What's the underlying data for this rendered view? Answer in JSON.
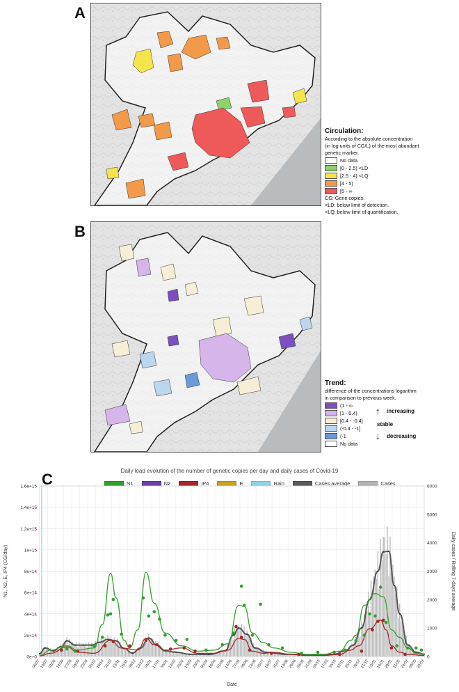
{
  "panels": {
    "a": "A",
    "b": "B",
    "c": "C"
  },
  "legend_a": {
    "title": "Circulation:",
    "desc1": "According to the absolute concentration",
    "desc2": "(in log units of CG/L) of the most abundant",
    "desc3": "genetic marker.",
    "items": [
      {
        "label": "No data",
        "color": "#ffffff"
      },
      {
        "label": "[0 - 2.5) <LD",
        "color": "#8fd16a"
      },
      {
        "label": "[2.5 - 4) <LQ",
        "color": "#f5e54a"
      },
      {
        "label": "[4 - 5)",
        "color": "#f29a4a"
      },
      {
        "label": "[5 - ∞",
        "color": "#ee5a5a"
      }
    ],
    "note1": "CG: Gene copies.",
    "note2": "<LD: below limit of detection.",
    "note3": "<LQ: below limit of quantification."
  },
  "legend_b": {
    "title": "Trend:",
    "desc1": "difference of the concentrations logarithm",
    "desc2": "in comparison to previous week.",
    "items": [
      {
        "label": "(1 - ∞",
        "color": "#7b4fbf"
      },
      {
        "label": "[1 - 0.4)",
        "color": "#d5b5ea"
      },
      {
        "label": "[0.4 - -0.4]",
        "color": "#f6eed6"
      },
      {
        "label": "(-0.4 - -1]",
        "color": "#bcd6ee"
      },
      {
        "label": "(-1",
        "color": "#6a9bd8"
      },
      {
        "label": "No data",
        "color": "#ffffff"
      }
    ],
    "increasing": "increasing",
    "stable": "stable",
    "decreasing": "decreasing",
    "arrow_up": "↑",
    "arrow_down": "↓"
  },
  "chart_data": {
    "type": "line",
    "title": "Daily load evolution of the number of genetic copies per day and daily cases of Covid-19",
    "xlabel": "Date",
    "ylabel": "N1, N2, E, IP4 (CG/day)",
    "y2label": "Daily cases / Rolling 7-days average",
    "ylim": [
      0,
      1600000000000000.0
    ],
    "y2lim": [
      0,
      6000
    ],
    "yticks": [
      "0e+0",
      "2e+14",
      "4e+14",
      "6e+14",
      "8e+14",
      "1e+15",
      "1.2e+15",
      "1.4e+15",
      "1.6e+15"
    ],
    "y2ticks": [
      "0",
      "1000",
      "2000",
      "3000",
      "4000",
      "5000",
      "6000"
    ],
    "xticks": [
      "06/07",
      "19/07",
      "01/08",
      "14/08",
      "27/08",
      "09/09",
      "22/09",
      "05/10",
      "18/10",
      "31/10",
      "13/11",
      "26/11",
      "09/12",
      "22/12",
      "04/01",
      "17/01",
      "30/01",
      "12/02",
      "25/02",
      "10/03",
      "23/03",
      "05/04",
      "18/04",
      "01/05",
      "14/05",
      "27/05",
      "09/06",
      "22/06",
      "05/07",
      "18/07",
      "31/07",
      "13/08",
      "26/08",
      "08/09",
      "21/09",
      "04/10",
      "17/10",
      "30/10",
      "12/11",
      "25/11",
      "08/12",
      "21/12",
      "03/01",
      "16/01",
      "29/01",
      "11/02",
      "24/02",
      "09/03",
      "22/03"
    ],
    "legend": [
      {
        "name": "N1",
        "color": "#33a02c"
      },
      {
        "name": "N2",
        "color": "#6a3db0"
      },
      {
        "name": "IP4",
        "color": "#a52a2a"
      },
      {
        "name": "E",
        "color": "#c9a227"
      },
      {
        "name": "Rain",
        "color": "#8dd3e8"
      },
      {
        "name": "Cases average",
        "color": "#5a5a5a"
      },
      {
        "name": "Cases",
        "color": "#b3b3b3"
      }
    ],
    "n1_trend": [
      [
        0,
        10000000000000.0
      ],
      [
        4,
        60000000000000.0
      ],
      [
        10,
        100000000000000.0
      ],
      [
        14,
        60000000000000.0
      ],
      [
        20,
        80000000000000.0
      ],
      [
        23,
        300000000000000.0
      ],
      [
        26,
        780000000000000.0
      ],
      [
        28,
        550000000000000.0
      ],
      [
        31,
        150000000000000.0
      ],
      [
        33,
        80000000000000.0
      ],
      [
        36,
        250000000000000.0
      ],
      [
        39,
        790000000000000.0
      ],
      [
        42,
        500000000000000.0
      ],
      [
        46,
        220000000000000.0
      ],
      [
        52,
        100000000000000.0
      ],
      [
        58,
        50000000000000.0
      ],
      [
        64,
        60000000000000.0
      ],
      [
        69,
        120000000000000.0
      ],
      [
        73,
        480000000000000.0
      ],
      [
        75,
        470000000000000.0
      ],
      [
        78,
        220000000000000.0
      ],
      [
        82,
        130000000000000.0
      ],
      [
        86,
        80000000000000.0
      ],
      [
        92,
        40000000000000.0
      ],
      [
        98,
        20000000000000.0
      ],
      [
        104,
        20000000000000.0
      ],
      [
        110,
        50000000000000.0
      ],
      [
        114,
        150000000000000.0
      ],
      [
        116,
        200000000000000.0
      ],
      [
        119,
        480000000000000.0
      ],
      [
        123,
        590000000000000.0
      ],
      [
        126,
        560000000000000.0
      ],
      [
        129,
        250000000000000.0
      ],
      [
        132,
        180000000000000.0
      ],
      [
        135,
        80000000000000.0
      ],
      [
        138,
        30000000000000.0
      ],
      [
        141,
        20000000000000.0
      ]
    ],
    "ip4_trend": [
      [
        0,
        5000000000000.0
      ],
      [
        4,
        30000000000000.0
      ],
      [
        10,
        90000000000000.0
      ],
      [
        14,
        40000000000000.0
      ],
      [
        20,
        30000000000000.0
      ],
      [
        26,
        150000000000000.0
      ],
      [
        30,
        80000000000000.0
      ],
      [
        36,
        60000000000000.0
      ],
      [
        39,
        170000000000000.0
      ],
      [
        42,
        110000000000000.0
      ],
      [
        46,
        60000000000000.0
      ],
      [
        52,
        80000000000000.0
      ],
      [
        58,
        30000000000000.0
      ],
      [
        64,
        30000000000000.0
      ],
      [
        69,
        60000000000000.0
      ],
      [
        73,
        170000000000000.0
      ],
      [
        75,
        160000000000000.0
      ],
      [
        78,
        50000000000000.0
      ],
      [
        82,
        30000000000000.0
      ],
      [
        86,
        40000000000000.0
      ],
      [
        92,
        20000000000000.0
      ],
      [
        98,
        10000000000000.0
      ],
      [
        104,
        10000000000000.0
      ],
      [
        110,
        20000000000000.0
      ],
      [
        114,
        60000000000000.0
      ],
      [
        117,
        100000000000000.0
      ],
      [
        121,
        260000000000000.0
      ],
      [
        125,
        340000000000000.0
      ],
      [
        127,
        250000000000000.0
      ],
      [
        129,
        100000000000000.0
      ],
      [
        132,
        40000000000000.0
      ],
      [
        135,
        20000000000000.0
      ],
      [
        141,
        10000000000000.0
      ]
    ],
    "cases_avg": [
      [
        0,
        100
      ],
      [
        2,
        300
      ],
      [
        5,
        200
      ],
      [
        8,
        350
      ],
      [
        10,
        550
      ],
      [
        13,
        400
      ],
      [
        16,
        400
      ],
      [
        19,
        400
      ],
      [
        22,
        500
      ],
      [
        25,
        600
      ],
      [
        28,
        550
      ],
      [
        31,
        280
      ],
      [
        34,
        120
      ],
      [
        37,
        300
      ],
      [
        40,
        650
      ],
      [
        43,
        400
      ],
      [
        46,
        200
      ],
      [
        50,
        150
      ],
      [
        55,
        80
      ],
      [
        62,
        70
      ],
      [
        68,
        200
      ],
      [
        71,
        750
      ],
      [
        73,
        1000
      ],
      [
        76,
        780
      ],
      [
        79,
        300
      ],
      [
        83,
        150
      ],
      [
        90,
        80
      ],
      [
        100,
        60
      ],
      [
        108,
        80
      ],
      [
        112,
        200
      ],
      [
        115,
        400
      ],
      [
        118,
        1000
      ],
      [
        121,
        2000
      ],
      [
        124,
        3000
      ],
      [
        126,
        3680
      ],
      [
        128,
        3700
      ],
      [
        130,
        2500
      ],
      [
        132,
        1500
      ],
      [
        135,
        400
      ],
      [
        138,
        150
      ],
      [
        141,
        80
      ]
    ],
    "n1_points": [
      [
        27,
        535000000000000.0
      ],
      [
        38,
        550000000000000.0
      ],
      [
        74,
        660000000000000.0
      ],
      [
        75,
        480000000000000.0
      ],
      [
        81,
        490000000000000.0
      ],
      [
        125,
        650000000000000.0
      ],
      [
        121,
        400000000000000.0
      ],
      [
        123,
        380000000000000.0
      ],
      [
        20,
        100000000000000.0
      ],
      [
        23,
        180000000000000.0
      ],
      [
        25,
        390000000000000.0
      ],
      [
        26,
        400000000000000.0
      ],
      [
        30,
        210000000000000.0
      ],
      [
        40,
        380000000000000.0
      ],
      [
        42,
        420000000000000.0
      ],
      [
        44,
        350000000000000.0
      ],
      [
        46,
        200000000000000.0
      ],
      [
        50,
        150000000000000.0
      ],
      [
        54,
        160000000000000.0
      ],
      [
        61,
        60000000000000.0
      ],
      [
        67,
        110000000000000.0
      ],
      [
        71,
        220000000000000.0
      ],
      [
        78,
        200000000000000.0
      ],
      [
        84,
        110000000000000.0
      ],
      [
        89,
        80000000000000.0
      ],
      [
        96,
        30000000000000.0
      ],
      [
        102,
        40000000000000.0
      ],
      [
        108,
        40000000000000.0
      ],
      [
        112,
        60000000000000.0
      ],
      [
        116,
        150000000000000.0
      ],
      [
        119,
        200000000000000.0
      ],
      [
        127,
        320000000000000.0
      ],
      [
        131,
        100000000000000.0
      ],
      [
        135,
        80000000000000.0
      ],
      [
        138,
        80000000000000.0
      ],
      [
        140,
        60000000000000.0
      ],
      [
        10,
        70000000000000.0
      ],
      [
        13,
        50000000000000.0
      ]
    ],
    "ip4_points": [
      [
        24,
        100000000000000.0
      ],
      [
        27,
        140000000000000.0
      ],
      [
        33,
        100000000000000.0
      ],
      [
        39,
        150000000000000.0
      ],
      [
        43,
        110000000000000.0
      ],
      [
        48,
        70000000000000.0
      ],
      [
        53,
        80000000000000.0
      ],
      [
        57,
        50000000000000.0
      ],
      [
        72,
        280000000000000.0
      ],
      [
        74,
        180000000000000.0
      ],
      [
        77,
        60000000000000.0
      ],
      [
        85,
        30000000000000.0
      ],
      [
        95,
        20000000000000.0
      ],
      [
        110,
        20000000000000.0
      ],
      [
        118,
        50000000000000.0
      ],
      [
        122,
        250000000000000.0
      ],
      [
        124,
        330000000000000.0
      ],
      [
        126,
        340000000000000.0
      ],
      [
        129,
        80000000000000.0
      ],
      [
        134,
        20000000000000.0
      ],
      [
        8,
        60000000000000.0
      ],
      [
        14,
        50000000000000.0
      ]
    ]
  }
}
